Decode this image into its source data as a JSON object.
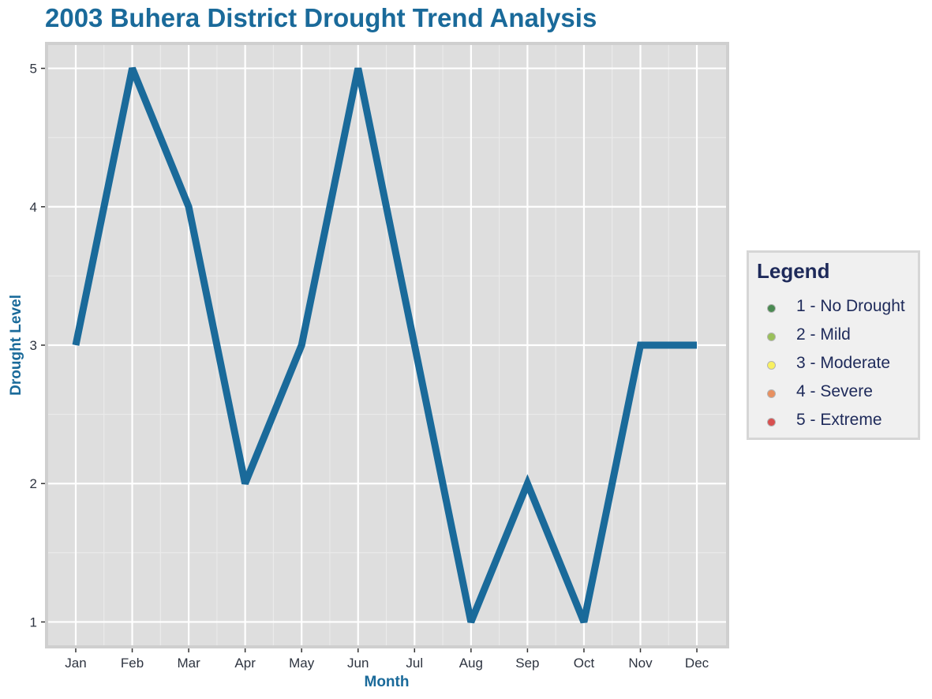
{
  "chart_data": {
    "type": "line",
    "title": "2003 Buhera District Drought Trend Analysis",
    "xlabel": "Month",
    "ylabel": "Drought Level",
    "categories": [
      "Jan",
      "Feb",
      "Mar",
      "Apr",
      "May",
      "Jun",
      "Jul",
      "Aug",
      "Sep",
      "Oct",
      "Nov",
      "Dec"
    ],
    "series": [
      {
        "values": [
          3,
          5,
          4,
          2,
          3,
          5,
          3,
          1,
          2,
          1,
          3,
          3
        ],
        "color": "#1a6a9a"
      }
    ],
    "ylim": [
      0.82,
      5.18
    ],
    "yticks": [
      1,
      2,
      3,
      4,
      5
    ],
    "grid": true,
    "panel_background": "#dedede",
    "legend_position": "right",
    "legend": {
      "title": "Legend",
      "items": [
        {
          "label": "1 - No Drought",
          "color": "#4a8a52"
        },
        {
          "label": "2 - Mild",
          "color": "#9ac05a"
        },
        {
          "label": "3 - Moderate",
          "color": "#f8f060"
        },
        {
          "label": "4 - Severe",
          "color": "#e89060"
        },
        {
          "label": "5 - Extreme",
          "color": "#d85050"
        }
      ]
    }
  }
}
